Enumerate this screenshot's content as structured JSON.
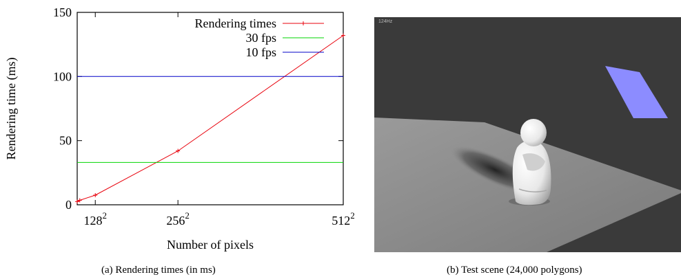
{
  "chart_data": {
    "type": "line",
    "title": "",
    "xlabel": "Number of pixels",
    "ylabel": "Rendering time (ms)",
    "ylim": [
      0,
      150
    ],
    "xlim": [
      100,
      512
    ],
    "grid": false,
    "legend_placement": "top-right",
    "y_ticks": [
      "0",
      "50",
      "100",
      "150"
    ],
    "x_ticks": [
      {
        "value": 128,
        "base": "128",
        "exp": "2"
      },
      {
        "value": 256,
        "base": "256",
        "exp": "2"
      },
      {
        "value": 512,
        "base": "512",
        "exp": "2"
      }
    ],
    "series": [
      {
        "name": "Rendering times",
        "color": "#e8000b",
        "marker": "plus",
        "x": [
          100,
          104,
          128,
          256,
          512
        ],
        "y": [
          2.5,
          3.5,
          7.5,
          42,
          132
        ]
      },
      {
        "name": "30 fps",
        "color": "#00d400",
        "marker": "none",
        "x": [
          100,
          512
        ],
        "y": [
          33,
          33
        ]
      },
      {
        "name": "10 fps",
        "color": "#0000c8",
        "marker": "none",
        "x": [
          100,
          512
        ],
        "y": [
          100,
          100
        ]
      }
    ]
  },
  "captions": {
    "left": "(a)  Rendering times (in ms)",
    "right": "(b)  Test scene (24,000 polygons)"
  },
  "scene": {
    "hz_label": "124Hz",
    "background_color": "#3a3a3a",
    "floor_color": "#8a8a8a",
    "light_color": "#8c8cff"
  }
}
